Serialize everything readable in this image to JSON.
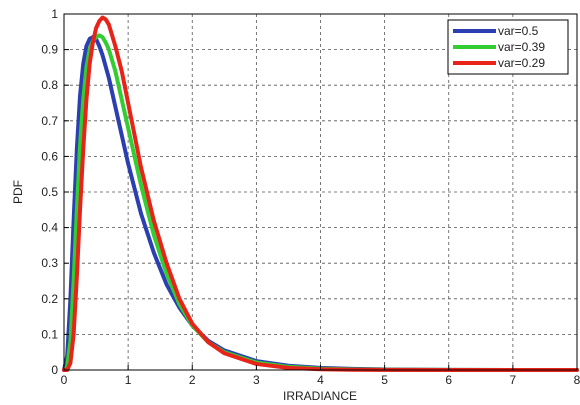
{
  "chart_data": {
    "type": "line",
    "xlabel": "IRRADIANCE",
    "ylabel": "PDF",
    "xlim": [
      0,
      8
    ],
    "ylim": [
      0,
      1
    ],
    "xticks": [
      "0",
      "1",
      "2",
      "3",
      "4",
      "5",
      "6",
      "7",
      "8"
    ],
    "yticks": [
      "0",
      "0.1",
      "0.2",
      "0.3",
      "0.4",
      "0.5",
      "0.6",
      "0.7",
      "0.8",
      "0.9",
      "1"
    ],
    "grid": true,
    "legend_position": "top-right",
    "series": [
      {
        "name": "var=0.5",
        "color": "#2b3fb0",
        "x": [
          0,
          0.05,
          0.1,
          0.15,
          0.2,
          0.25,
          0.3,
          0.35,
          0.4,
          0.45,
          0.5,
          0.55,
          0.6,
          0.7,
          0.8,
          0.9,
          1.0,
          1.2,
          1.4,
          1.6,
          1.8,
          2.0,
          2.25,
          2.5,
          3.0,
          3.5,
          4.0,
          4.5,
          5.0,
          6.0,
          7.0,
          8.0
        ],
        "y": [
          0,
          0.04,
          0.2,
          0.42,
          0.62,
          0.77,
          0.86,
          0.91,
          0.93,
          0.935,
          0.93,
          0.91,
          0.885,
          0.82,
          0.74,
          0.66,
          0.58,
          0.44,
          0.33,
          0.24,
          0.175,
          0.125,
          0.082,
          0.055,
          0.025,
          0.012,
          0.006,
          0.003,
          0.0015,
          0.0004,
          0.0001,
          0
        ]
      },
      {
        "name": "var=0.39",
        "color": "#33cc33",
        "x": [
          0,
          0.05,
          0.1,
          0.15,
          0.2,
          0.25,
          0.3,
          0.35,
          0.4,
          0.45,
          0.5,
          0.55,
          0.6,
          0.65,
          0.7,
          0.8,
          0.9,
          1.0,
          1.2,
          1.4,
          1.6,
          1.8,
          2.0,
          2.25,
          2.5,
          3.0,
          3.5,
          4.0,
          4.5,
          5.0,
          6.0,
          7.0,
          8.0
        ],
        "y": [
          0,
          0.01,
          0.08,
          0.25,
          0.45,
          0.63,
          0.76,
          0.85,
          0.9,
          0.925,
          0.935,
          0.94,
          0.935,
          0.92,
          0.9,
          0.84,
          0.76,
          0.68,
          0.52,
          0.38,
          0.27,
          0.185,
          0.125,
          0.078,
          0.05,
          0.021,
          0.009,
          0.004,
          0.0018,
          0.0008,
          0.0002,
          0,
          0
        ]
      },
      {
        "name": "var=0.29",
        "color": "#e8231a",
        "x": [
          0,
          0.05,
          0.1,
          0.15,
          0.2,
          0.25,
          0.3,
          0.35,
          0.4,
          0.45,
          0.5,
          0.55,
          0.6,
          0.65,
          0.7,
          0.75,
          0.8,
          0.9,
          1.0,
          1.1,
          1.2,
          1.4,
          1.6,
          1.8,
          2.0,
          2.25,
          2.5,
          3.0,
          3.5,
          4.0,
          4.5,
          5.0,
          6.0,
          7.0,
          8.0
        ],
        "y": [
          0,
          0,
          0.02,
          0.1,
          0.26,
          0.45,
          0.62,
          0.76,
          0.86,
          0.92,
          0.96,
          0.98,
          0.99,
          0.985,
          0.97,
          0.94,
          0.91,
          0.84,
          0.75,
          0.66,
          0.57,
          0.42,
          0.3,
          0.2,
          0.13,
          0.078,
          0.047,
          0.017,
          0.006,
          0.002,
          0.0008,
          0.0003,
          0,
          0,
          0
        ]
      }
    ]
  }
}
